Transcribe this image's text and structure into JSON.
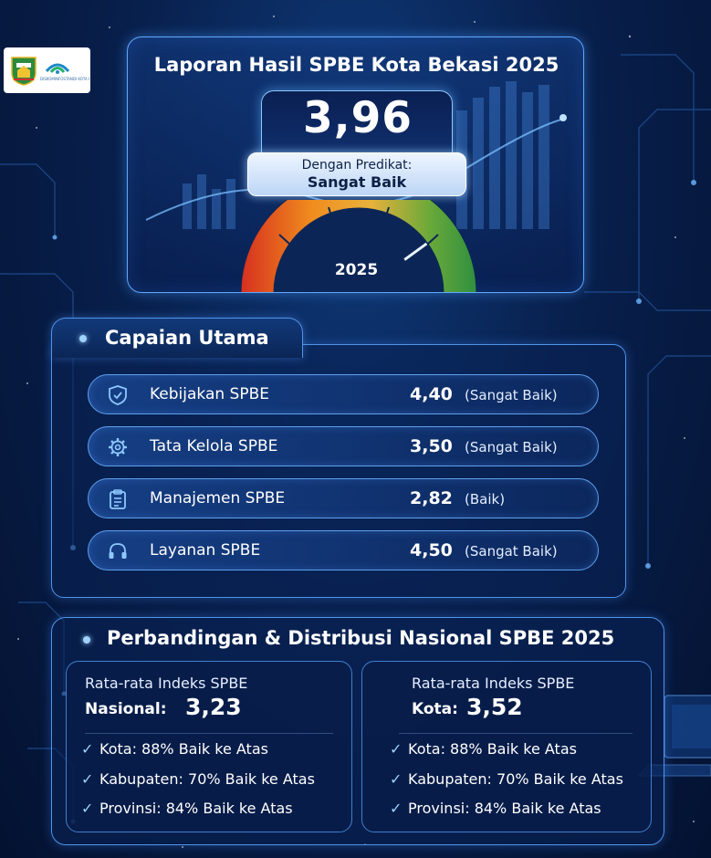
{
  "logo": {
    "text": "DISKOMINFOSTANDI KOTA BEKASI"
  },
  "header": {
    "title": "Laporan Hasil SPBE Kota Bekasi 2025",
    "score": "3,96",
    "predikat_label": "Dengan Predikat:",
    "predikat_value": "Sangat Baik",
    "year": "2025",
    "gauge_level": 0.8
  },
  "capaian": {
    "title": "Capaian Utama",
    "items": [
      {
        "name": "Kebijakan SPBE",
        "score": "4,40",
        "predikat": "(Sangat Baik)",
        "icon": "shield-check-icon"
      },
      {
        "name": "Tata Kelola SPBE",
        "score": "3,50",
        "predikat": "(Sangat Baik)",
        "icon": "gear-icon"
      },
      {
        "name": "Manajemen SPBE",
        "score": "2,82",
        "predikat": "(Baik)",
        "icon": "clipboard-icon"
      },
      {
        "name": "Layanan SPBE",
        "score": "4,50",
        "predikat": "(Sangat Baik)",
        "icon": "headset-icon"
      }
    ]
  },
  "perbandingan": {
    "title": "Perbandingan & Distribusi Nasional SPBE 2025",
    "cards": [
      {
        "label_line1": "Rata-rata Indeks SPBE",
        "label_line2": "Nasional:",
        "value": "3,23",
        "items": [
          "Kota: 88% Baik ke Atas",
          "Kabupaten: 70% Baik ke Atas",
          "Provinsi: 84% Baik ke Atas"
        ]
      },
      {
        "label_line1": "Rata-rata Indeks SPBE",
        "label_line2": "Kota:",
        "value": "3,52",
        "items": [
          "Kota: 88% Baik ke Atas",
          "Kabupaten: 70% Baik ke Atas",
          "Provinsi: 84% Baik ke Atas"
        ]
      }
    ]
  },
  "colors": {
    "background": "#08204d",
    "accent": "#5fa8ff",
    "gauge_red": "#d7301f",
    "gauge_orange": "#f08c1e",
    "gauge_yellow": "#e8b23a",
    "gauge_green": "#3aa346"
  }
}
